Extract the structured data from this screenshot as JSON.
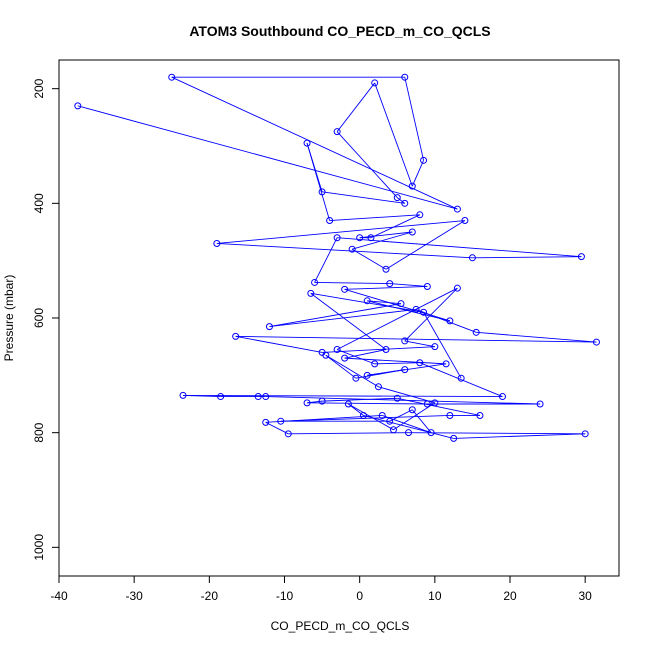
{
  "chart_data": {
    "type": "scatter",
    "title": "ATOM3 Southbound CO_PECD_m_CO_QCLS",
    "xlabel": "CO_PECD_m_CO_QCLS",
    "ylabel": "Pressure (mbar)",
    "xlim": [
      -40,
      34.5
    ],
    "ylim": [
      1050,
      150
    ],
    "y_reversed": true,
    "x_ticks": [
      "-40",
      "-30",
      "-20",
      "-10",
      "0",
      "10",
      "20",
      "30"
    ],
    "x_tick_values": [
      -40,
      -30,
      -20,
      -10,
      0,
      10,
      20,
      30
    ],
    "y_ticks": [
      "200",
      "400",
      "600",
      "800",
      "1000"
    ],
    "y_tick_values": [
      200,
      400,
      600,
      800,
      1000
    ],
    "grid": false,
    "marker": "open-circle",
    "connect_points": true,
    "colors": {
      "series": "#0000ff",
      "axes": "#000000"
    },
    "series": [
      {
        "x": [
          -37.5,
          13.0,
          -25.0,
          6.0,
          8.5,
          7.0,
          2.0,
          -3.0,
          5.0,
          6.0,
          -5.0,
          -7.0,
          -4.0,
          8.0,
          1.5,
          0.0,
          7.0,
          -1.0,
          3.5,
          14.0,
          -19.0,
          15.0,
          29.5,
          -3.0,
          -6.0,
          4.0,
          9.0,
          -2.0,
          12.0,
          1.0,
          5.5,
          -12.0,
          7.5,
          15.5,
          31.5,
          -16.5,
          -5.0,
          10.0,
          6.0,
          13.0,
          -3.0,
          2.0,
          8.0,
          19.0,
          -23.5,
          -18.5,
          -13.5,
          -12.5,
          24.0,
          9.0,
          -7.0,
          -5.0,
          5.0,
          16.0,
          12.0,
          -10.5,
          4.0,
          7.0,
          9.5,
          3.0,
          -12.5,
          -9.5,
          6.5,
          30.0,
          12.5,
          0.5,
          -1.5,
          4.5,
          10.0,
          2.5,
          -4.5,
          -0.5,
          6.0,
          1.0,
          11.5,
          -2.0,
          3.5,
          -6.5,
          8.5,
          13.5
        ],
        "y": [
          230,
          410,
          180,
          180,
          325,
          370,
          190,
          275,
          390,
          400,
          380,
          295,
          430,
          420,
          460,
          460,
          450,
          480,
          515,
          430,
          470,
          495,
          493,
          460,
          538,
          540,
          545,
          550,
          605,
          570,
          575,
          615,
          585,
          625,
          642,
          632,
          660,
          650,
          640,
          548,
          655,
          680,
          678,
          737,
          735,
          737,
          737,
          737,
          750,
          750,
          748,
          745,
          740,
          770,
          770,
          780,
          780,
          760,
          800,
          770,
          782,
          802,
          800,
          802,
          810,
          770,
          750,
          795,
          748,
          720,
          665,
          705,
          690,
          700,
          680,
          670,
          655,
          557,
          590,
          705
        ]
      }
    ]
  }
}
